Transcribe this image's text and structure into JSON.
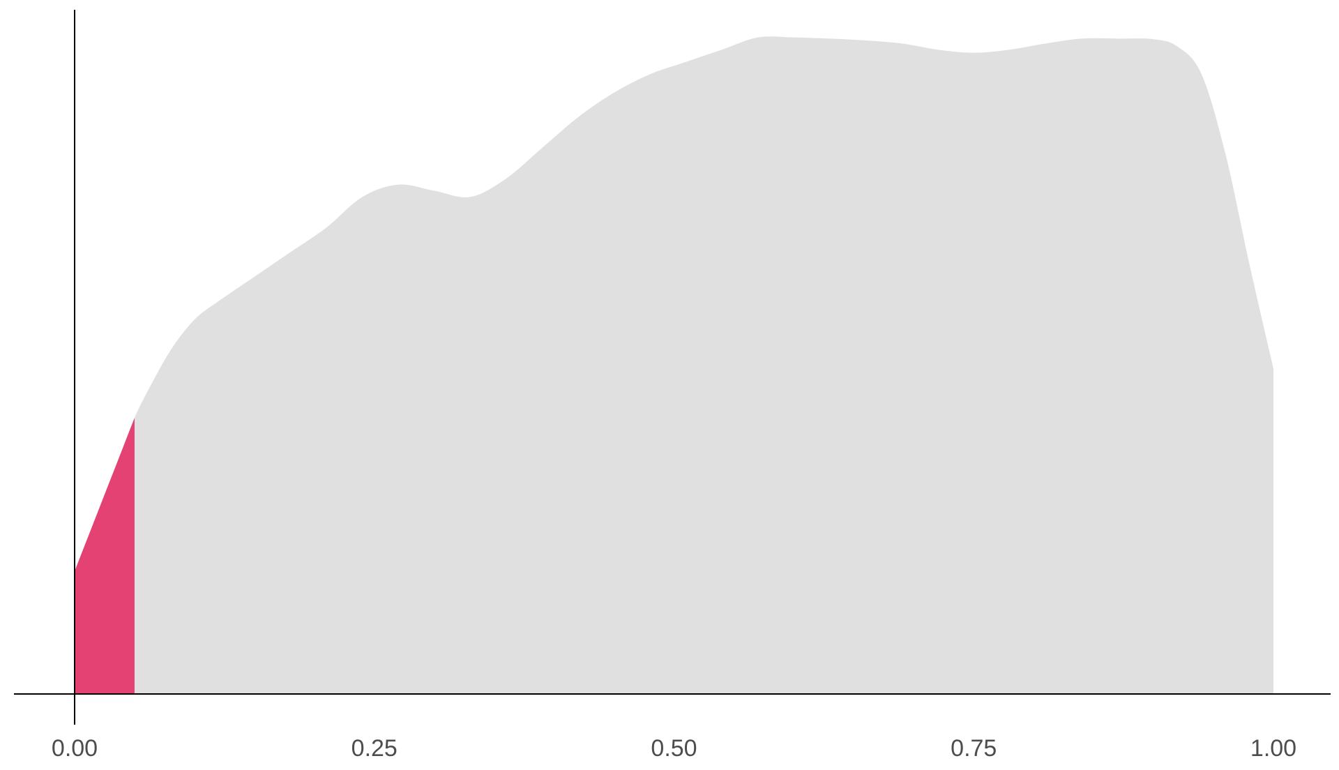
{
  "chart_data": {
    "type": "area",
    "title": "",
    "xlabel": "",
    "ylabel": "",
    "xlim": [
      0,
      1
    ],
    "ylim": [
      0,
      1.09
    ],
    "x_ticks": [
      0,
      0.25,
      0.5,
      0.75,
      1
    ],
    "x_tick_labels": [
      "0.00",
      "0.25",
      "0.50",
      "0.75",
      "1.00"
    ],
    "y_axis_labels_shown": false,
    "grid": false,
    "legend": "none",
    "series": [
      {
        "fill": "#e0e0e0",
        "x_range": [
          0,
          1
        ],
        "x": [
          0,
          0.01,
          0.02,
          0.03,
          0.04,
          0.05,
          0.06,
          0.08,
          0.1,
          0.12,
          0.15,
          0.18,
          0.21,
          0.24,
          0.27,
          0.3,
          0.33,
          0.36,
          0.39,
          0.42,
          0.45,
          0.48,
          0.51,
          0.54,
          0.57,
          0.6,
          0.63,
          0.66,
          0.69,
          0.72,
          0.75,
          0.78,
          0.81,
          0.84,
          0.87,
          0.9,
          0.92,
          0.94,
          0.96,
          0.98,
          1.0
        ],
        "y": [
          0.2,
          0.25,
          0.3,
          0.35,
          0.4,
          0.45,
          0.49,
          0.56,
          0.61,
          0.64,
          0.68,
          0.72,
          0.76,
          0.81,
          0.83,
          0.82,
          0.81,
          0.84,
          0.89,
          0.94,
          0.98,
          1.01,
          1.03,
          1.05,
          1.07,
          1.07,
          1.068,
          1.065,
          1.06,
          1.05,
          1.045,
          1.05,
          1.06,
          1.068,
          1.068,
          1.067,
          1.055,
          1.01,
          0.88,
          0.7,
          0.53
        ]
      },
      {
        "fill": "#e34273",
        "x_range": [
          0,
          0.05
        ],
        "x": [
          0,
          0.01,
          0.02,
          0.03,
          0.04,
          0.05
        ],
        "y": [
          0.2,
          0.25,
          0.3,
          0.35,
          0.4,
          0.45
        ]
      }
    ]
  }
}
